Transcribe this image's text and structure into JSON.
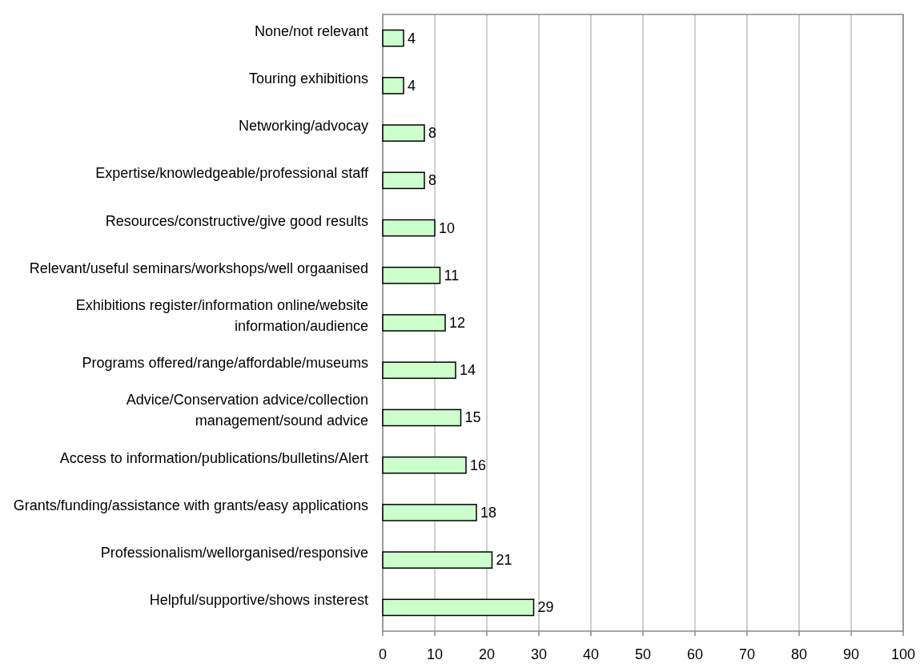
{
  "chart_data": {
    "type": "bar",
    "orientation": "horizontal",
    "categories": [
      "None/not relevant",
      "Touring exhibitions",
      "Networking/advocay",
      "Expertise/knowledgeable/professional staff",
      "Resources/constructive/give good results",
      "Relevant/useful seminars/workshops/well orgaanised",
      "Exhibitions register/information online/website information/audience",
      "Programs offered/range/affordable/museums",
      "Advice/Conservation advice/collection management/sound advice",
      "Access to information/publications/bulletins/Alert",
      "Grants/funding/assistance with grants/easy applications",
      "Professionalism/wellorganised/responsive",
      "Helpful/supportive/shows insterest"
    ],
    "values": [
      4,
      4,
      8,
      8,
      10,
      11,
      12,
      14,
      15,
      16,
      18,
      21,
      29
    ],
    "color": "#ccffcc",
    "xlim": [
      0,
      100
    ],
    "xticks": [
      0,
      10,
      20,
      30,
      40,
      50,
      60,
      70,
      80,
      90,
      100
    ],
    "grid": "x",
    "data_labels": true
  }
}
